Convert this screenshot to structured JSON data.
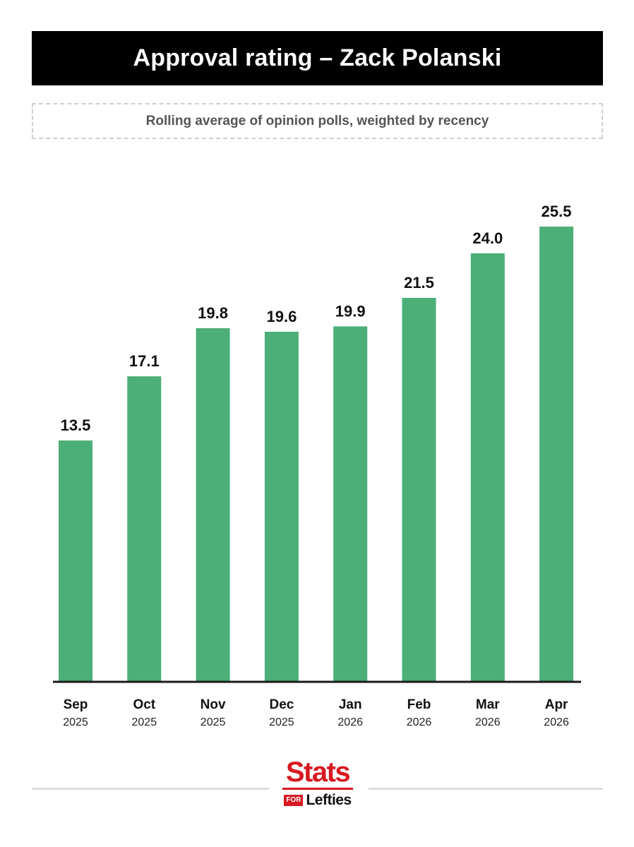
{
  "header": {
    "title": "Approval rating – Zack Polanski",
    "subtitle": "Rolling average of opinion polls, weighted by recency"
  },
  "chart_data": {
    "type": "bar",
    "title": "Approval rating – Zack Polanski",
    "subtitle": "Rolling average of opinion polls, weighted by recency",
    "categories": [
      "Sep",
      "Oct",
      "Nov",
      "Dec",
      "Jan",
      "Feb",
      "Mar",
      "Apr"
    ],
    "years": [
      "2025",
      "2025",
      "2025",
      "2025",
      "2026",
      "2026",
      "2026",
      "2026"
    ],
    "values": [
      13.5,
      17.1,
      19.8,
      19.6,
      19.9,
      21.5,
      24.0,
      25.5
    ],
    "value_labels": [
      "13.5",
      "17.1",
      "19.8",
      "19.6",
      "19.9",
      "21.5",
      "24.0",
      "25.5"
    ],
    "xlabel": "",
    "ylabel": "",
    "ylim": [
      0,
      25.5
    ],
    "grid": false,
    "bar_color": "#4caf78",
    "baseline_color": "#1a1a1a"
  },
  "footer": {
    "logo_main": "Stats",
    "logo_for": "FOR",
    "logo_sub": "Lefties",
    "brand_color": "#d71920"
  }
}
